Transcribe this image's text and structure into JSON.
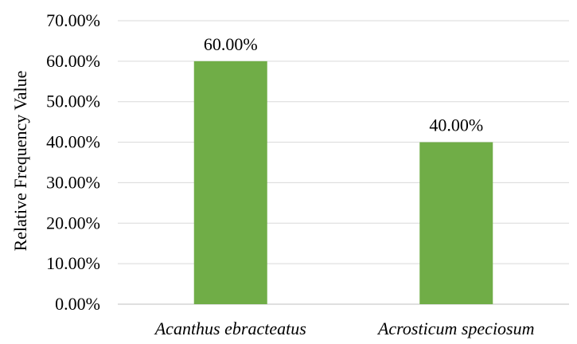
{
  "chart_data": {
    "type": "bar",
    "categories": [
      "Acanthus ebracteatus",
      "Acrosticum speciosum"
    ],
    "values": [
      60.0,
      40.0
    ],
    "value_labels": [
      "60.00%",
      "40.00%"
    ],
    "xlabel": "",
    "ylabel": "Relative Frequency Value",
    "ylim": [
      0,
      70
    ],
    "yticks": [
      0,
      10,
      20,
      30,
      40,
      50,
      60,
      70
    ],
    "ytick_labels": [
      "0.00%",
      "10.00%",
      "20.00%",
      "30.00%",
      "40.00%",
      "50.00%",
      "60.00%",
      "70.00%"
    ],
    "grid": true,
    "legend": "none",
    "bar_color": "#70ad47"
  }
}
